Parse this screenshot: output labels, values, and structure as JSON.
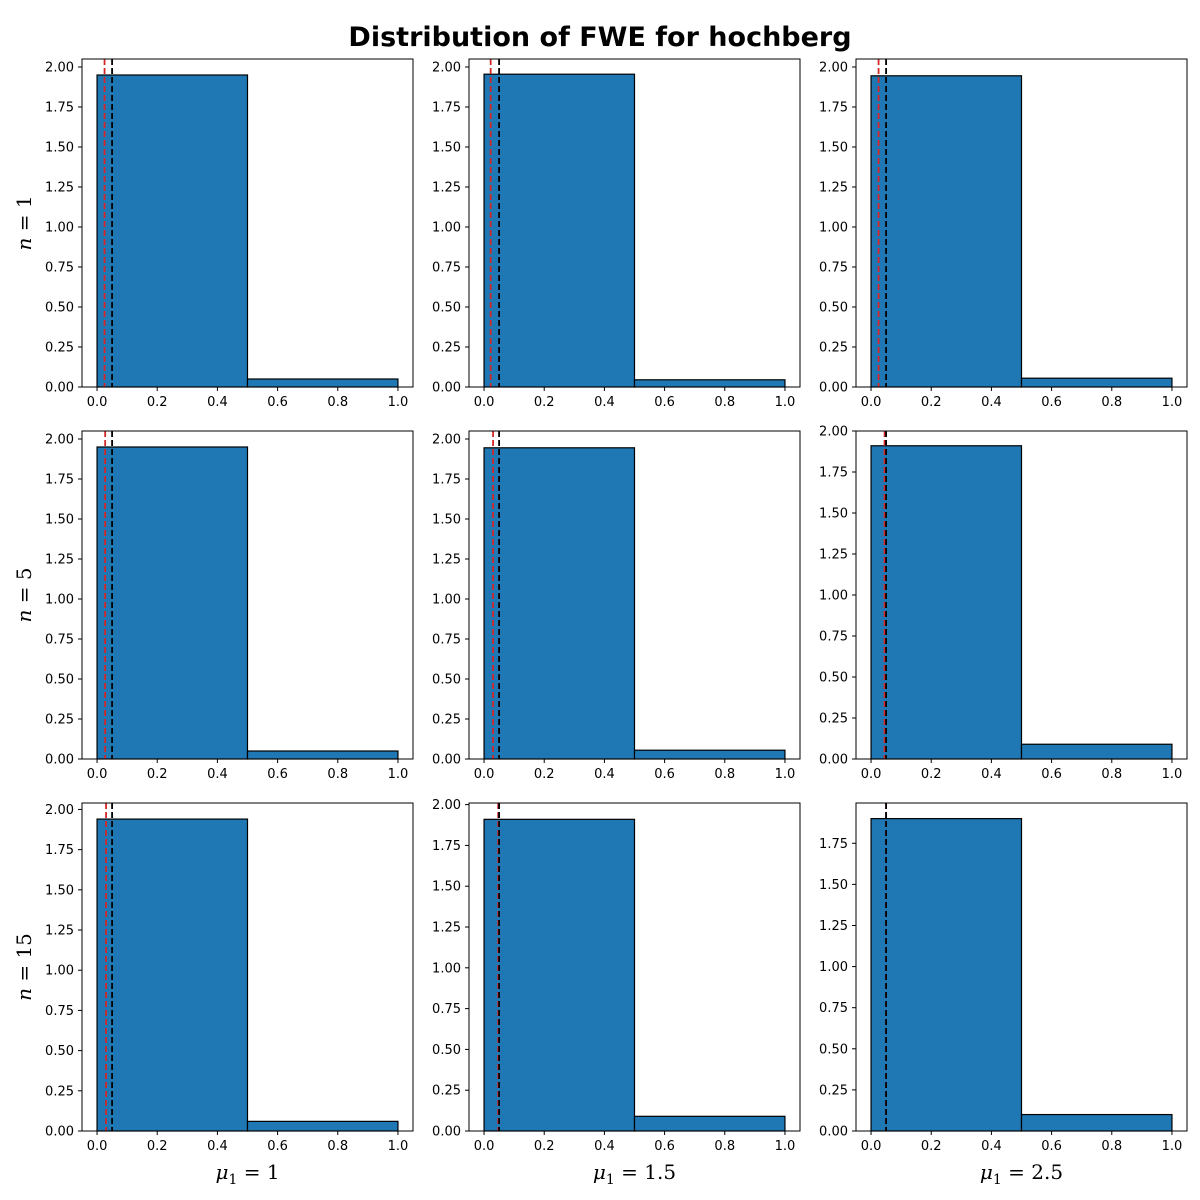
{
  "figure": {
    "title": "Distribution of FWE for hochberg",
    "row_labels": [
      {
        "var": "n",
        "value": "1"
      },
      {
        "var": "n",
        "value": "5"
      },
      {
        "var": "n",
        "value": "15"
      }
    ],
    "col_labels": [
      {
        "var": "μ",
        "sub": "1",
        "value": "1"
      },
      {
        "var": "μ",
        "sub": "1",
        "value": "1.5"
      },
      {
        "var": "μ",
        "sub": "1",
        "value": "2.5"
      }
    ],
    "colors": {
      "bar_fill": "#1f77b4",
      "bar_edge": "#000000",
      "red_line": "#d62728",
      "black_line": "#000000"
    }
  },
  "chart_data": [
    {
      "type": "bar",
      "row": 1,
      "col": 1,
      "bins": [
        [
          0,
          0.5
        ],
        [
          0.5,
          1.0
        ]
      ],
      "values": [
        1.95,
        0.05
      ],
      "xlim": [
        -0.05,
        1.05
      ],
      "ylim": [
        0,
        2.05
      ],
      "xticks": [
        "0.0",
        "0.2",
        "0.4",
        "0.6",
        "0.8",
        "1.0"
      ],
      "yticks": [
        "0.00",
        "0.25",
        "0.50",
        "0.75",
        "1.00",
        "1.25",
        "1.50",
        "1.75",
        "2.00"
      ],
      "red_line": 0.025,
      "black_line": 0.05
    },
    {
      "type": "bar",
      "row": 1,
      "col": 2,
      "bins": [
        [
          0,
          0.5
        ],
        [
          0.5,
          1.0
        ]
      ],
      "values": [
        1.955,
        0.045
      ],
      "xlim": [
        -0.05,
        1.05
      ],
      "ylim": [
        0,
        2.05
      ],
      "xticks": [
        "0.0",
        "0.2",
        "0.4",
        "0.6",
        "0.8",
        "1.0"
      ],
      "yticks": [
        "0.00",
        "0.25",
        "0.50",
        "0.75",
        "1.00",
        "1.25",
        "1.50",
        "1.75",
        "2.00"
      ],
      "red_line": 0.022,
      "black_line": 0.05
    },
    {
      "type": "bar",
      "row": 1,
      "col": 3,
      "bins": [
        [
          0,
          0.5
        ],
        [
          0.5,
          1.0
        ]
      ],
      "values": [
        1.945,
        0.055
      ],
      "xlim": [
        -0.05,
        1.05
      ],
      "ylim": [
        0,
        2.05
      ],
      "xticks": [
        "0.0",
        "0.2",
        "0.4",
        "0.6",
        "0.8",
        "1.0"
      ],
      "yticks": [
        "0.00",
        "0.25",
        "0.50",
        "0.75",
        "1.00",
        "1.25",
        "1.50",
        "1.75",
        "2.00"
      ],
      "red_line": 0.025,
      "black_line": 0.05
    },
    {
      "type": "bar",
      "row": 2,
      "col": 1,
      "bins": [
        [
          0,
          0.5
        ],
        [
          0.5,
          1.0
        ]
      ],
      "values": [
        1.95,
        0.05
      ],
      "xlim": [
        -0.05,
        1.05
      ],
      "ylim": [
        0,
        2.05
      ],
      "xticks": [
        "0.0",
        "0.2",
        "0.4",
        "0.6",
        "0.8",
        "1.0"
      ],
      "yticks": [
        "0.00",
        "0.25",
        "0.50",
        "0.75",
        "1.00",
        "1.25",
        "1.50",
        "1.75",
        "2.00"
      ],
      "red_line": 0.027,
      "black_line": 0.05
    },
    {
      "type": "bar",
      "row": 2,
      "col": 2,
      "bins": [
        [
          0,
          0.5
        ],
        [
          0.5,
          1.0
        ]
      ],
      "values": [
        1.945,
        0.055
      ],
      "xlim": [
        -0.05,
        1.05
      ],
      "ylim": [
        0,
        2.05
      ],
      "xticks": [
        "0.0",
        "0.2",
        "0.4",
        "0.6",
        "0.8",
        "1.0"
      ],
      "yticks": [
        "0.00",
        "0.25",
        "0.50",
        "0.75",
        "1.00",
        "1.25",
        "1.50",
        "1.75",
        "2.00"
      ],
      "red_line": 0.03,
      "black_line": 0.05
    },
    {
      "type": "bar",
      "row": 2,
      "col": 3,
      "bins": [
        [
          0,
          0.5
        ],
        [
          0.5,
          1.0
        ]
      ],
      "values": [
        1.91,
        0.09
      ],
      "xlim": [
        -0.05,
        1.05
      ],
      "ylim": [
        0,
        2.0
      ],
      "xticks": [
        "0.0",
        "0.2",
        "0.4",
        "0.6",
        "0.8",
        "1.0"
      ],
      "yticks": [
        "0.00",
        "0.25",
        "0.50",
        "0.75",
        "1.00",
        "1.25",
        "1.50",
        "1.75",
        "2.00"
      ],
      "red_line": 0.045,
      "black_line": 0.05
    },
    {
      "type": "bar",
      "row": 3,
      "col": 1,
      "bins": [
        [
          0,
          0.5
        ],
        [
          0.5,
          1.0
        ]
      ],
      "values": [
        1.94,
        0.06
      ],
      "xlim": [
        -0.05,
        1.05
      ],
      "ylim": [
        0,
        2.04
      ],
      "xticks": [
        "0.0",
        "0.2",
        "0.4",
        "0.6",
        "0.8",
        "1.0"
      ],
      "yticks": [
        "0.00",
        "0.25",
        "0.50",
        "0.75",
        "1.00",
        "1.25",
        "1.50",
        "1.75",
        "2.00"
      ],
      "red_line": 0.03,
      "black_line": 0.05
    },
    {
      "type": "bar",
      "row": 3,
      "col": 2,
      "bins": [
        [
          0,
          0.5
        ],
        [
          0.5,
          1.0
        ]
      ],
      "values": [
        1.91,
        0.09
      ],
      "xlim": [
        -0.05,
        1.05
      ],
      "ylim": [
        0,
        2.01
      ],
      "xticks": [
        "0.0",
        "0.2",
        "0.4",
        "0.6",
        "0.8",
        "1.0"
      ],
      "yticks": [
        "0.00",
        "0.25",
        "0.50",
        "0.75",
        "1.00",
        "1.25",
        "1.50",
        "1.75",
        "2.00"
      ],
      "red_line": 0.047,
      "black_line": 0.05
    },
    {
      "type": "bar",
      "row": 3,
      "col": 3,
      "bins": [
        [
          0,
          0.5
        ],
        [
          0.5,
          1.0
        ]
      ],
      "values": [
        1.9,
        0.1
      ],
      "xlim": [
        -0.05,
        1.05
      ],
      "ylim": [
        0,
        1.995
      ],
      "xticks": [
        "0.0",
        "0.2",
        "0.4",
        "0.6",
        "0.8",
        "1.0"
      ],
      "yticks": [
        "0.00",
        "0.25",
        "0.50",
        "0.75",
        "1.00",
        "1.25",
        "1.50",
        "1.75"
      ],
      "red_line": 0.05,
      "black_line": 0.05
    }
  ]
}
